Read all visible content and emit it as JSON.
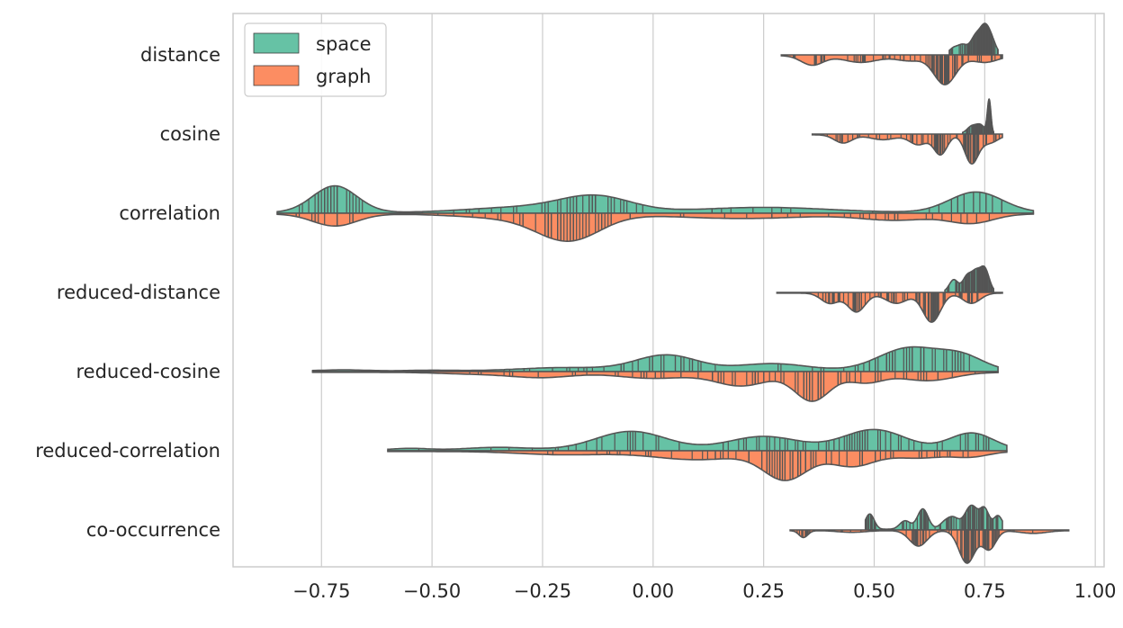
{
  "chart_data": {
    "type": "split-violin",
    "orientation": "horizontal",
    "title": "",
    "xlabel": "",
    "ylabel": "",
    "xlim": [
      -0.95,
      1.02
    ],
    "xticks": [
      -0.75,
      -0.5,
      -0.25,
      0.0,
      0.25,
      0.5,
      0.75,
      1.0
    ],
    "xtick_labels": [
      "−0.75",
      "−0.50",
      "−0.25",
      "0.00",
      "0.25",
      "0.50",
      "0.75",
      "1.00"
    ],
    "grid": "vertical",
    "legend_position": "top-left",
    "categories": [
      "distance",
      "cosine",
      "correlation",
      "reduced-distance",
      "reduced-cosine",
      "reduced-correlation",
      "co-occurrence"
    ],
    "series": [
      {
        "name": "space",
        "color": "#66c2a5",
        "side": "upper",
        "distributions": [
          {
            "range": [
              0.67,
              0.78
            ],
            "peaks": [
              [
                0.68,
                0.25,
                0.01
              ],
              [
                0.7,
                0.35,
                0.01
              ],
              [
                0.73,
                0.75,
                0.012
              ],
              [
                0.75,
                0.9,
                0.01
              ],
              [
                0.765,
                0.55,
                0.01
              ]
            ]
          },
          {
            "range": [
              0.7,
              0.77
            ],
            "peaks": [
              [
                0.72,
                0.2,
                0.01
              ],
              [
                0.74,
                0.25,
                0.01
              ],
              [
                0.76,
                1.0,
                0.004
              ]
            ]
          },
          {
            "range": [
              -0.85,
              0.86
            ],
            "peaks": [
              [
                -0.72,
                0.78,
                0.05
              ],
              [
                -0.3,
                0.15,
                0.12
              ],
              [
                -0.13,
                0.45,
                0.08
              ],
              [
                0.25,
                0.15,
                0.15
              ],
              [
                0.73,
                0.6,
                0.06
              ]
            ]
          },
          {
            "range": [
              0.66,
              0.77
            ],
            "peaks": [
              [
                0.68,
                0.4,
                0.01
              ],
              [
                0.71,
                0.5,
                0.01
              ],
              [
                0.73,
                0.6,
                0.01
              ],
              [
                0.75,
                0.75,
                0.01
              ]
            ]
          },
          {
            "range": [
              -0.77,
              0.78
            ],
            "peaks": [
              [
                -0.7,
                0.03,
                0.05
              ],
              [
                -0.5,
                0.02,
                0.05
              ],
              [
                -0.2,
                0.1,
                0.1
              ],
              [
                0.03,
                0.48,
                0.07
              ],
              [
                0.27,
                0.22,
                0.08
              ],
              [
                0.58,
                0.7,
                0.07
              ],
              [
                0.7,
                0.4,
                0.05
              ]
            ]
          },
          {
            "range": [
              -0.6,
              0.8
            ],
            "peaks": [
              [
                -0.55,
                0.05,
                0.04
              ],
              [
                -0.35,
                0.08,
                0.07
              ],
              [
                -0.05,
                0.55,
                0.08
              ],
              [
                0.25,
                0.4,
                0.08
              ],
              [
                0.5,
                0.6,
                0.07
              ],
              [
                0.72,
                0.5,
                0.05
              ]
            ]
          },
          {
            "range": [
              0.48,
              0.79
            ],
            "peaks": [
              [
                0.49,
                0.45,
                0.01
              ],
              [
                0.57,
                0.25,
                0.012
              ],
              [
                0.61,
                0.6,
                0.012
              ],
              [
                0.66,
                0.2,
                0.012
              ],
              [
                0.68,
                0.3,
                0.012
              ],
              [
                0.72,
                0.7,
                0.015
              ],
              [
                0.75,
                0.55,
                0.01
              ],
              [
                0.78,
                0.4,
                0.01
              ]
            ]
          }
        ]
      },
      {
        "name": "graph",
        "color": "#fc8d62",
        "side": "lower",
        "distributions": [
          {
            "range": [
              0.29,
              0.79
            ],
            "peaks": [
              [
                0.36,
                0.28,
                0.025
              ],
              [
                0.47,
                0.2,
                0.04
              ],
              [
                0.58,
                0.15,
                0.03
              ],
              [
                0.66,
                0.85,
                0.025
              ],
              [
                0.75,
                0.2,
                0.03
              ]
            ]
          },
          {
            "range": [
              0.36,
              0.79
            ],
            "peaks": [
              [
                0.43,
                0.25,
                0.02
              ],
              [
                0.52,
                0.15,
                0.03
              ],
              [
                0.6,
                0.3,
                0.02
              ],
              [
                0.65,
                0.6,
                0.015
              ],
              [
                0.72,
                0.85,
                0.015
              ],
              [
                0.76,
                0.25,
                0.02
              ]
            ]
          },
          {
            "range": [
              -0.85,
              0.86
            ],
            "peaks": [
              [
                -0.72,
                0.4,
                0.05
              ],
              [
                -0.3,
                0.15,
                0.12
              ],
              [
                -0.19,
                0.8,
                0.07
              ],
              [
                0.2,
                0.15,
                0.15
              ],
              [
                0.55,
                0.2,
                0.08
              ],
              [
                0.72,
                0.3,
                0.05
              ]
            ]
          },
          {
            "range": [
              0.28,
              0.79
            ],
            "peaks": [
              [
                0.4,
                0.3,
                0.02
              ],
              [
                0.46,
                0.55,
                0.02
              ],
              [
                0.55,
                0.3,
                0.025
              ],
              [
                0.63,
                0.85,
                0.02
              ],
              [
                0.72,
                0.3,
                0.02
              ]
            ]
          },
          {
            "range": [
              -0.77,
              0.78
            ],
            "peaks": [
              [
                -0.4,
                0.05,
                0.08
              ],
              [
                -0.25,
                0.15,
                0.07
              ],
              [
                0.0,
                0.18,
                0.08
              ],
              [
                0.2,
                0.4,
                0.06
              ],
              [
                0.36,
                0.85,
                0.04
              ],
              [
                0.48,
                0.3,
                0.04
              ],
              [
                0.62,
                0.25,
                0.06
              ]
            ]
          },
          {
            "range": [
              -0.6,
              0.8
            ],
            "peaks": [
              [
                -0.2,
                0.1,
                0.1
              ],
              [
                0.1,
                0.25,
                0.1
              ],
              [
                0.3,
                0.85,
                0.05
              ],
              [
                0.45,
                0.45,
                0.05
              ],
              [
                0.6,
                0.2,
                0.06
              ],
              [
                0.72,
                0.15,
                0.04
              ]
            ]
          },
          {
            "range": [
              0.31,
              0.94
            ],
            "peaks": [
              [
                0.34,
                0.2,
                0.01
              ],
              [
                0.45,
                0.05,
                0.03
              ],
              [
                0.6,
                0.45,
                0.02
              ],
              [
                0.71,
                0.95,
                0.018
              ],
              [
                0.76,
                0.55,
                0.015
              ],
              [
                0.86,
                0.08,
                0.03
              ]
            ]
          }
        ]
      }
    ]
  }
}
